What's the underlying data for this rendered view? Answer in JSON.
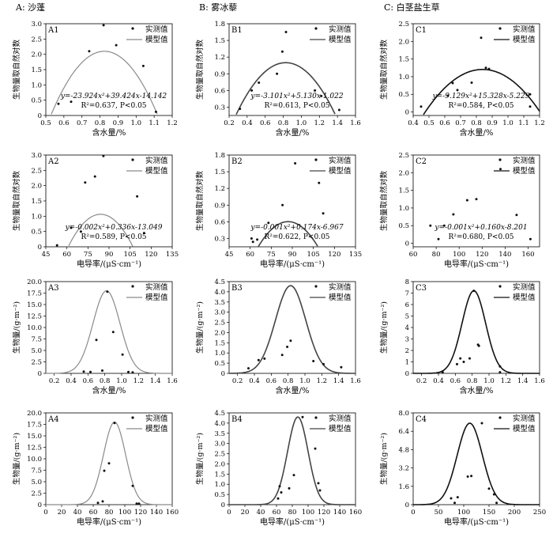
{
  "column_headers": [
    "A: 沙蓬",
    "B: 雾冰藜",
    "C: 白茎盐生草"
  ],
  "chart_data": [
    {
      "panel": "A1",
      "type": "scatter",
      "fit": "quadratic",
      "coef": [
        -23.924,
        39.424,
        -14.142
      ],
      "title": "A1",
      "xlabel": "含水量/%",
      "ylabel": "生物量取自然对数",
      "xlim": [
        0.5,
        1.2
      ],
      "ylim": [
        0,
        3.0
      ],
      "xticks": [
        "0.5",
        "0.6",
        "0.7",
        "0.8",
        "0.9",
        "1.0",
        "1.1",
        "1.2"
      ],
      "yticks": [
        "0",
        "0.5",
        "1.0",
        "1.5",
        "2.0",
        "2.5",
        "3.0"
      ],
      "legend": [
        "实测值",
        "模型值"
      ],
      "equation": "y=-23.924x²+39.424x-14.142",
      "r2": "R²=0.637, P<0.05",
      "points": [
        [
          0.57,
          0.38
        ],
        [
          0.64,
          0.45
        ],
        [
          0.74,
          2.1
        ],
        [
          0.82,
          2.95
        ],
        [
          0.89,
          2.3
        ],
        [
          1.04,
          1.62
        ],
        [
          1.11,
          0.12
        ]
      ]
    },
    {
      "panel": "B1",
      "type": "scatter",
      "fit": "quadratic",
      "coef": [
        -3.101,
        5.13,
        -1.022
      ],
      "title": "B1",
      "xlabel": "含水量/%",
      "ylabel": "生物量取自然对数",
      "xlim": [
        0.2,
        1.6
      ],
      "ylim": [
        0.15,
        1.8
      ],
      "xticks": [
        "0.2",
        "0.4",
        "0.6",
        "0.8",
        "1.0",
        "1.2",
        "1.4",
        "1.6"
      ],
      "yticks": [
        "0.3",
        "0.6",
        "0.9",
        "1.2",
        "1.5",
        "1.8"
      ],
      "legend": [
        "实测值",
        "模型值"
      ],
      "equation": "y=-3.101x²+5.130x-1.022",
      "r2": "R²=0.613, P<0.05",
      "points": [
        [
          0.32,
          0.27
        ],
        [
          0.45,
          0.6
        ],
        [
          0.53,
          0.74
        ],
        [
          0.73,
          0.9
        ],
        [
          0.79,
          1.3
        ],
        [
          0.83,
          1.65
        ],
        [
          1.15,
          0.6
        ],
        [
          1.22,
          0.5
        ],
        [
          1.42,
          0.25
        ]
      ]
    },
    {
      "panel": "C1",
      "type": "scatter",
      "fit": "quadratic",
      "coef": [
        -9.129,
        15.328,
        -5.229
      ],
      "title": "C1",
      "xlabel": "含水量/%",
      "ylabel": "生物量取自然对数",
      "xlim": [
        0.4,
        1.2
      ],
      "ylim": [
        -0.1,
        2.5
      ],
      "xticks": [
        "0.4",
        "0.5",
        "0.6",
        "0.7",
        "0.8",
        "0.9",
        "1.0",
        "1.1",
        "1.2"
      ],
      "yticks": [
        "0",
        "0.5",
        "1.0",
        "1.5",
        "2.0",
        "2.5"
      ],
      "legend": [
        "实测值",
        "模型值"
      ],
      "equation": "y=-9.129x²+15.328x-5.229",
      "r2": "R²=0.584, P<0.05",
      "points": [
        [
          0.45,
          0.15
        ],
        [
          0.62,
          0.46
        ],
        [
          0.65,
          0.82
        ],
        [
          0.68,
          0.62
        ],
        [
          0.77,
          0.83
        ],
        [
          0.83,
          2.1
        ],
        [
          0.86,
          1.25
        ],
        [
          0.88,
          1.22
        ],
        [
          1.14,
          0.5
        ],
        [
          1.14,
          0.15
        ]
      ]
    },
    {
      "panel": "A2",
      "type": "scatter",
      "fit": "quadratic",
      "coef": [
        -0.002,
        0.336,
        -13.049
      ],
      "title": "A2",
      "xlabel": "电导率/(μS·cm⁻¹)",
      "ylabel": "生物量取自然对数",
      "xlim": [
        45,
        135
      ],
      "ylim": [
        0,
        3.0
      ],
      "xticks": [
        "45",
        "60",
        "75",
        "90",
        "105",
        "120",
        "135"
      ],
      "yticks": [
        "0",
        "0.5",
        "1.0",
        "1.5",
        "2.0",
        "2.5",
        "3.0"
      ],
      "legend": [
        "实测值",
        "模型值"
      ],
      "equation": "y=-0.002x²+0.336x-13.049",
      "r2": "R²=0.589, P<0.05",
      "points": [
        [
          53,
          0.05
        ],
        [
          63,
          0.62
        ],
        [
          70,
          0.5
        ],
        [
          73,
          2.1
        ],
        [
          80,
          2.3
        ],
        [
          86,
          2.97
        ],
        [
          110,
          1.65
        ],
        [
          115,
          0.45
        ]
      ]
    },
    {
      "panel": "B2",
      "type": "scatter",
      "fit": "quadratic",
      "coef": [
        -0.001,
        0.174,
        -6.967
      ],
      "title": "B2",
      "xlabel": "电导率/(μS·cm⁻¹)",
      "ylabel": "生物量取自然对数",
      "xlim": [
        45,
        135
      ],
      "ylim": [
        0.15,
        1.8
      ],
      "xticks": [
        "45",
        "60",
        "75",
        "90",
        "105",
        "120",
        "135"
      ],
      "yticks": [
        "0.3",
        "0.6",
        "0.9",
        "1.2",
        "1.5",
        "1.8"
      ],
      "legend": [
        "实测值",
        "模型值"
      ],
      "equation": "y=-0.001x²+0.174x-6.967",
      "r2": "R²=0.622, P<0.05",
      "points": [
        [
          61,
          0.3
        ],
        [
          62,
          0.24
        ],
        [
          65,
          0.28
        ],
        [
          73,
          0.58
        ],
        [
          83,
          0.9
        ],
        [
          92,
          1.65
        ],
        [
          109,
          1.3
        ],
        [
          112,
          0.75
        ]
      ]
    },
    {
      "panel": "C2",
      "type": "scatter",
      "fit": "quadratic",
      "coef": [
        -0.001,
        0.16,
        -8.201
      ],
      "title": "C2",
      "xlabel": "电导率/(μS·cm⁻¹)",
      "ylabel": "生物量取自然对数",
      "xlim": [
        60,
        170
      ],
      "ylim": [
        -0.1,
        2.5
      ],
      "xticks": [
        "60",
        "80",
        "100",
        "120",
        "140",
        "160"
      ],
      "yticks": [
        "0",
        "0.5",
        "1.0",
        "1.5",
        "2.0",
        "2.5"
      ],
      "legend": [
        "实测值",
        "模型值"
      ],
      "equation": "y=-0.001x²+0.160x-8.201",
      "r2": "R²=0.680, P<0.05",
      "points": [
        [
          75,
          0.5
        ],
        [
          82,
          0.12
        ],
        [
          87,
          0.5
        ],
        [
          95,
          0.82
        ],
        [
          107,
          1.22
        ],
        [
          115,
          1.25
        ],
        [
          136,
          2.1
        ],
        [
          150,
          0.8
        ],
        [
          162,
          0.12
        ]
      ]
    },
    {
      "panel": "A3",
      "type": "scatter",
      "fit": "gaussian",
      "gauss": [
        18,
        0.82,
        0.16
      ],
      "title": "A3",
      "xlabel": "含水量/%",
      "ylabel": "生物量/(g·m⁻²)",
      "xlim": [
        0.1,
        1.6
      ],
      "ylim": [
        0,
        20
      ],
      "xticks": [
        "0.2",
        "0.4",
        "0.6",
        "0.8",
        "1.0",
        "1.2",
        "1.4",
        "1.6"
      ],
      "yticks": [
        "0",
        "2.5",
        "5.0",
        "7.5",
        "10.0",
        "12.5",
        "15.0",
        "17.5",
        "20.0"
      ],
      "legend": [
        "实测值",
        "模型值"
      ],
      "points": [
        [
          0.55,
          0.4
        ],
        [
          0.63,
          0.3
        ],
        [
          0.7,
          7.3
        ],
        [
          0.77,
          0.6
        ],
        [
          0.83,
          17.8
        ],
        [
          0.9,
          9.0
        ],
        [
          1.01,
          4.1
        ],
        [
          1.08,
          0.3
        ],
        [
          1.13,
          0.2
        ]
      ]
    },
    {
      "panel": "B3",
      "type": "scatter",
      "fit": "gaussian",
      "gauss": [
        4.3,
        0.83,
        0.18
      ],
      "title": "B3",
      "xlabel": "含水量/%",
      "ylabel": "生物量/(g·m⁻²)",
      "xlim": [
        0.1,
        1.6
      ],
      "ylim": [
        0,
        4.5
      ],
      "xticks": [
        "0.2",
        "0.4",
        "0.6",
        "0.8",
        "1.0",
        "1.2",
        "1.4",
        "1.6"
      ],
      "yticks": [
        "0",
        "0.5",
        "1.0",
        "1.5",
        "2.0",
        "2.5",
        "3.0",
        "3.5",
        "4.0",
        "4.5"
      ],
      "legend": [
        "实测值",
        "模型值"
      ],
      "points": [
        [
          0.33,
          0.25
        ],
        [
          0.45,
          0.65
        ],
        [
          0.52,
          0.72
        ],
        [
          0.73,
          0.9
        ],
        [
          0.79,
          1.3
        ],
        [
          0.83,
          1.6
        ],
        [
          1.1,
          0.6
        ],
        [
          1.22,
          0.45
        ],
        [
          1.43,
          0.3
        ]
      ]
    },
    {
      "panel": "C3",
      "type": "scatter",
      "fit": "gaussian",
      "gauss": [
        7.2,
        0.82,
        0.14
      ],
      "title": "C3",
      "xlabel": "含水量/%",
      "ylabel": "生物量/(g·m⁻²)",
      "xlim": [
        0.1,
        1.6
      ],
      "ylim": [
        0,
        8
      ],
      "xticks": [
        "0.2",
        "0.4",
        "0.6",
        "0.8",
        "1.0",
        "1.2",
        "1.4",
        "1.6"
      ],
      "yticks": [
        "0",
        "1",
        "2",
        "3",
        "4",
        "5",
        "6",
        "7",
        "8"
      ],
      "legend": [
        "实测值",
        "模型值"
      ],
      "points": [
        [
          0.45,
          0.1
        ],
        [
          0.62,
          0.8
        ],
        [
          0.66,
          1.3
        ],
        [
          0.7,
          1.0
        ],
        [
          0.77,
          1.3
        ],
        [
          0.82,
          7.2
        ],
        [
          0.87,
          2.5
        ],
        [
          0.88,
          2.4
        ],
        [
          1.13,
          0.6
        ],
        [
          1.13,
          0.1
        ]
      ]
    },
    {
      "panel": "A4",
      "type": "scatter",
      "fit": "gaussian",
      "gauss": [
        18,
        87,
        14
      ],
      "title": "A4",
      "xlabel": "电导率/(μS·cm⁻¹)",
      "ylabel": "生物量/(g·m⁻²)",
      "xlim": [
        0,
        160
      ],
      "ylim": [
        0,
        20
      ],
      "xticks": [
        "0",
        "20",
        "40",
        "60",
        "80",
        "100",
        "120",
        "140",
        "160"
      ],
      "yticks": [
        "0",
        "2.5",
        "5.0",
        "7.5",
        "10.0",
        "12.5",
        "15.0",
        "17.5",
        "20.0"
      ],
      "legend": [
        "实测值",
        "模型值"
      ],
      "points": [
        [
          66,
          0.4
        ],
        [
          72,
          0.7
        ],
        [
          74,
          7.4
        ],
        [
          80,
          9.0
        ],
        [
          87,
          17.8
        ],
        [
          110,
          4.1
        ],
        [
          115,
          0.2
        ],
        [
          118,
          0.2
        ]
      ]
    },
    {
      "panel": "B4",
      "type": "scatter",
      "fit": "gaussian",
      "gauss": [
        4.3,
        87,
        13
      ],
      "title": "B4",
      "xlabel": "电导率/(μS·cm⁻¹)",
      "ylabel": "生物量/(g·m⁻²)",
      "xlim": [
        0,
        160
      ],
      "ylim": [
        0,
        4.5
      ],
      "xticks": [
        "0",
        "20",
        "40",
        "60",
        "80",
        "100",
        "120",
        "140",
        "160"
      ],
      "yticks": [
        "0",
        "0.5",
        "1.0",
        "1.5",
        "2.0",
        "2.5",
        "3.0",
        "3.5",
        "4.0",
        "4.5"
      ],
      "legend": [
        "实测值",
        "模型值"
      ],
      "points": [
        [
          62,
          0.3
        ],
        [
          64,
          0.9
        ],
        [
          66,
          0.6
        ],
        [
          76,
          0.8
        ],
        [
          82,
          1.45
        ],
        [
          93,
          4.3
        ],
        [
          109,
          2.75
        ],
        [
          113,
          1.05
        ],
        [
          115,
          0.7
        ]
      ]
    },
    {
      "panel": "C4",
      "type": "scatter",
      "fit": "gaussian",
      "gauss": [
        7.1,
        112,
        25
      ],
      "title": "C4",
      "xlabel": "电导率/(μS·cm⁻¹)",
      "ylabel": "生物量/(g·m⁻²)",
      "xlim": [
        0,
        250
      ],
      "ylim": [
        0,
        8
      ],
      "xticks": [
        "0",
        "50",
        "100",
        "150",
        "200",
        "250"
      ],
      "yticks": [
        "0",
        "1.6",
        "3.2",
        "4.8",
        "6.4",
        "8.0"
      ],
      "legend": [
        "实测值",
        "模型值"
      ],
      "points": [
        [
          75,
          0.55
        ],
        [
          82,
          0.15
        ],
        [
          88,
          0.65
        ],
        [
          108,
          2.45
        ],
        [
          115,
          2.5
        ],
        [
          136,
          7.1
        ],
        [
          150,
          1.4
        ],
        [
          160,
          0.9
        ],
        [
          165,
          0.15
        ]
      ]
    }
  ],
  "colors": {
    "A": "#8a8a8a",
    "B": "#444444",
    "C": "#111111",
    "axis": "#000000",
    "point": "#111111"
  }
}
